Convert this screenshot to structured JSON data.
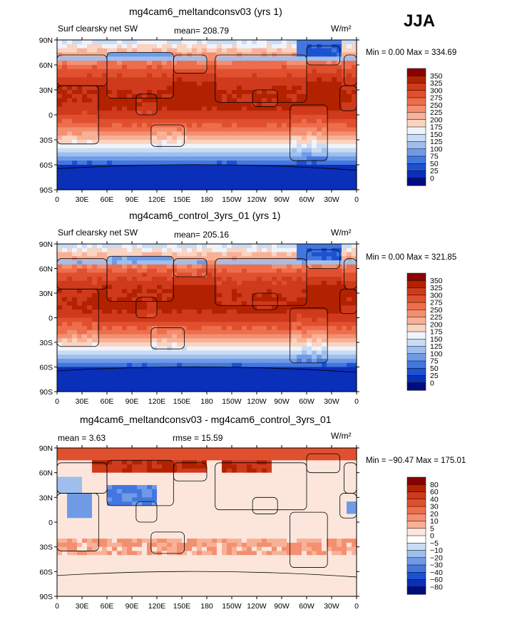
{
  "season": "JJA",
  "units": "W/m²",
  "chart_data": [
    {
      "type": "heatmap",
      "title": "mg4cam6_meltandconsv03 (yrs 1)",
      "left_label": "Surf clearsky net SW",
      "center_stat": "mean= 208.79",
      "units": "W/m²",
      "minmax": "Min =    0.00 Max = 334.69",
      "field": "clearsky_sw",
      "colorbar_levels": [
        "350",
        "325",
        "300",
        "275",
        "250",
        "225",
        "200",
        "175",
        "150",
        "125",
        "100",
        "75",
        "50",
        "25",
        "0"
      ],
      "colorbar_colors": [
        "#8b0000",
        "#b22200",
        "#cf3a1c",
        "#e0502e",
        "#ee6d4c",
        "#f48f70",
        "#f8b196",
        "#fad3c1",
        "#f0f3fb",
        "#c8dcf5",
        "#9ebfee",
        "#6f9ae6",
        "#4377df",
        "#1c52d2",
        "#0a2fb8",
        "#000c80"
      ],
      "lat_ticks": [
        "90N",
        "60N",
        "30N",
        "0",
        "30S",
        "60S",
        "90S"
      ],
      "lon_ticks": [
        "0",
        "30E",
        "60E",
        "90E",
        "120E",
        "150E",
        "180",
        "150W",
        "120W",
        "90W",
        "60W",
        "30W",
        "0"
      ]
    },
    {
      "type": "heatmap",
      "title": "mg4cam6_control_3yrs_01 (yrs 1)",
      "left_label": "Surf clearsky net SW",
      "center_stat": "mean= 205.16",
      "units": "W/m²",
      "minmax": "Min =    0.00 Max = 321.85",
      "field": "clearsky_sw",
      "colorbar_levels": [
        "350",
        "325",
        "300",
        "275",
        "250",
        "225",
        "200",
        "175",
        "150",
        "125",
        "100",
        "75",
        "50",
        "25",
        "0"
      ],
      "colorbar_colors": [
        "#8b0000",
        "#b22200",
        "#cf3a1c",
        "#e0502e",
        "#ee6d4c",
        "#f48f70",
        "#f8b196",
        "#fad3c1",
        "#f0f3fb",
        "#c8dcf5",
        "#9ebfee",
        "#6f9ae6",
        "#4377df",
        "#1c52d2",
        "#0a2fb8",
        "#000c80"
      ],
      "lat_ticks": [
        "90N",
        "60N",
        "30N",
        "0",
        "30S",
        "60S",
        "90S"
      ],
      "lon_ticks": [
        "0",
        "30E",
        "60E",
        "90E",
        "120E",
        "150E",
        "180",
        "150W",
        "120W",
        "90W",
        "60W",
        "30W",
        "0"
      ]
    },
    {
      "type": "heatmap",
      "title": "mg4cam6_meltandconsv03 - mg4cam6_control_3yrs_01",
      "left_label": "mean =     3.63",
      "center_stat": "rmse =    15.59",
      "units": "W/m²",
      "minmax": "Min = −90.47 Max = 175.01",
      "field": "difference",
      "colorbar_levels": [
        "80",
        "60",
        "40",
        "30",
        "20",
        "10",
        "5",
        "0",
        "−5",
        "−10",
        "−20",
        "−30",
        "−40",
        "−60",
        "−80"
      ],
      "colorbar_colors": [
        "#8b0000",
        "#b22200",
        "#cf3a1c",
        "#e0502e",
        "#ee6d4c",
        "#f48f70",
        "#f8b196",
        "#fce6dc",
        "#ffffff",
        "#c8dcf5",
        "#9ebfee",
        "#6f9ae6",
        "#4377df",
        "#1c52d2",
        "#0a2fb8",
        "#000c80"
      ],
      "lat_ticks": [
        "90N",
        "60N",
        "30N",
        "0",
        "30S",
        "60S",
        "90S"
      ],
      "lon_ticks": [
        "0",
        "30E",
        "60E",
        "90E",
        "120E",
        "150E",
        "180",
        "150W",
        "120W",
        "90W",
        "60W",
        "30W",
        "0"
      ]
    }
  ]
}
